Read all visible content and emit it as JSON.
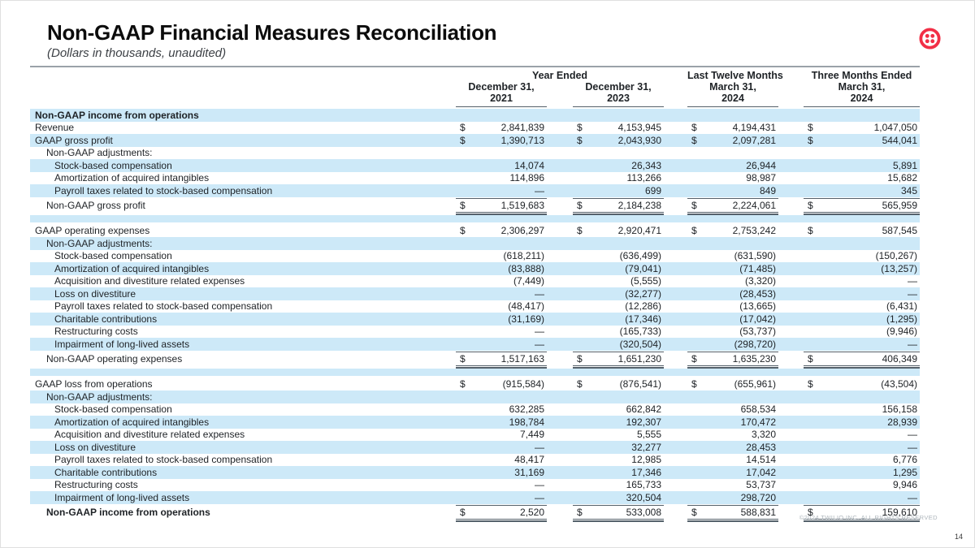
{
  "slide": {
    "title": "Non-GAAP Financial Measures Reconciliation",
    "subtitle": "(Dollars in thousands, unaudited)",
    "copyright": "©2024 TWILIO INC. ALL RIGHTS RESERVED",
    "page_number": "14"
  },
  "colors": {
    "stripe_blue": "#CDE9F8",
    "brand_red": "#F22F46",
    "rule_dark": "#55616B",
    "rule_light": "#9AA2A9",
    "text": "#1E2226",
    "footer_gray": "#AEB6BC"
  },
  "icons": {
    "logo": "twilio-logo"
  },
  "table": {
    "groups": [
      {
        "label": "Year Ended",
        "span": 2
      },
      {
        "label": "Last Twelve Months",
        "span": 1
      },
      {
        "label": "Three Months Ended",
        "span": 1
      }
    ],
    "columns": [
      {
        "line1": "December 31,",
        "line2": "2021"
      },
      {
        "line1": "December 31,",
        "line2": "2023"
      },
      {
        "line1": "March 31,",
        "line2": "2024"
      },
      {
        "line1": "March 31,",
        "line2": "2024"
      }
    ],
    "rows": [
      {
        "label": "Non-GAAP income from operations",
        "indent": 0,
        "bold": true,
        "stripe": true,
        "values": null
      },
      {
        "label": "Revenue",
        "indent": 0,
        "dollar": true,
        "values": [
          "2,841,839",
          "4,153,945",
          "4,194,431",
          "1,047,050"
        ]
      },
      {
        "label": "GAAP gross profit",
        "indent": 0,
        "dollar": true,
        "stripe": true,
        "values": [
          "1,390,713",
          "2,043,930",
          "2,097,281",
          "544,041"
        ]
      },
      {
        "label": "Non-GAAP adjustments:",
        "indent": 1,
        "values": null
      },
      {
        "label": "Stock-based compensation",
        "indent": 2,
        "stripe": true,
        "values": [
          "14,074",
          "26,343",
          "26,944",
          "5,891"
        ]
      },
      {
        "label": "Amortization of acquired intangibles",
        "indent": 2,
        "values": [
          "114,896",
          "113,266",
          "98,987",
          "15,682"
        ]
      },
      {
        "label": "Payroll taxes related to stock-based compensation",
        "indent": 2,
        "stripe": true,
        "values": [
          "—",
          "699",
          "849",
          "345"
        ]
      },
      {
        "label": "Non-GAAP gross profit",
        "indent": 1,
        "dollar": true,
        "total": true,
        "values": [
          "1,519,683",
          "2,184,238",
          "2,224,061",
          "565,959"
        ]
      },
      {
        "spacer": true,
        "stripe": true
      },
      {
        "label": "GAAP operating expenses",
        "indent": 0,
        "dollar": true,
        "values": [
          "2,306,297",
          "2,920,471",
          "2,753,242",
          "587,545"
        ]
      },
      {
        "label": "Non-GAAP adjustments:",
        "indent": 1,
        "stripe": true,
        "values": null
      },
      {
        "label": "Stock-based compensation",
        "indent": 2,
        "values": [
          "(618,211)",
          "(636,499)",
          "(631,590)",
          "(150,267)"
        ]
      },
      {
        "label": "Amortization of acquired intangibles",
        "indent": 2,
        "stripe": true,
        "values": [
          "(83,888)",
          "(79,041)",
          "(71,485)",
          "(13,257)"
        ]
      },
      {
        "label": "Acquisition and divestiture related expenses",
        "indent": 2,
        "values": [
          "(7,449)",
          "(5,555)",
          "(3,320)",
          "—"
        ]
      },
      {
        "label": "Loss on divestiture",
        "indent": 2,
        "stripe": true,
        "values": [
          "—",
          "(32,277)",
          "(28,453)",
          "—"
        ]
      },
      {
        "label": "Payroll taxes related to stock-based compensation",
        "indent": 2,
        "values": [
          "(48,417)",
          "(12,286)",
          "(13,665)",
          "(6,431)"
        ]
      },
      {
        "label": "Charitable contributions",
        "indent": 2,
        "stripe": true,
        "values": [
          "(31,169)",
          "(17,346)",
          "(17,042)",
          "(1,295)"
        ]
      },
      {
        "label": "Restructuring costs",
        "indent": 2,
        "values": [
          "—",
          "(165,733)",
          "(53,737)",
          "(9,946)"
        ]
      },
      {
        "label": "Impairment of long-lived assets",
        "indent": 2,
        "stripe": true,
        "values": [
          "—",
          "(320,504)",
          "(298,720)",
          "—"
        ]
      },
      {
        "label": "Non-GAAP operating expenses",
        "indent": 1,
        "dollar": true,
        "total": true,
        "values": [
          "1,517,163",
          "1,651,230",
          "1,635,230",
          "406,349"
        ]
      },
      {
        "spacer": true,
        "stripe": true
      },
      {
        "label": "GAAP loss from operations",
        "indent": 0,
        "dollar": true,
        "values": [
          "(915,584)",
          "(876,541)",
          "(655,961)",
          "(43,504)"
        ]
      },
      {
        "label": "Non-GAAP adjustments:",
        "indent": 1,
        "stripe": true,
        "values": null
      },
      {
        "label": "Stock-based compensation",
        "indent": 2,
        "values": [
          "632,285",
          "662,842",
          "658,534",
          "156,158"
        ]
      },
      {
        "label": "Amortization of acquired intangibles",
        "indent": 2,
        "stripe": true,
        "values": [
          "198,784",
          "192,307",
          "170,472",
          "28,939"
        ]
      },
      {
        "label": "Acquisition and divestiture related expenses",
        "indent": 2,
        "values": [
          "7,449",
          "5,555",
          "3,320",
          "—"
        ]
      },
      {
        "label": "Loss on divestiture",
        "indent": 2,
        "stripe": true,
        "values": [
          "—",
          "32,277",
          "28,453",
          "—"
        ]
      },
      {
        "label": "Payroll taxes related to stock-based compensation",
        "indent": 2,
        "values": [
          "48,417",
          "12,985",
          "14,514",
          "6,776"
        ]
      },
      {
        "label": "Charitable contributions",
        "indent": 2,
        "stripe": true,
        "values": [
          "31,169",
          "17,346",
          "17,042",
          "1,295"
        ]
      },
      {
        "label": "Restructuring costs",
        "indent": 2,
        "values": [
          "—",
          "165,733",
          "53,737",
          "9,946"
        ]
      },
      {
        "label": "Impairment of long-lived assets",
        "indent": 2,
        "stripe": true,
        "values": [
          "—",
          "320,504",
          "298,720",
          "—"
        ]
      },
      {
        "label": "Non-GAAP income from operations",
        "indent": 1,
        "bold": true,
        "dollar": true,
        "total": true,
        "final": true,
        "values": [
          "2,520",
          "533,008",
          "588,831",
          "159,610"
        ]
      }
    ]
  }
}
